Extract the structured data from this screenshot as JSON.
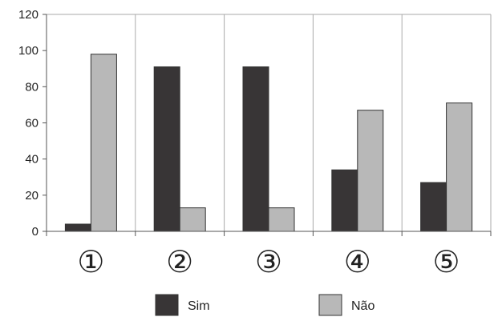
{
  "chart_data": {
    "type": "bar",
    "categories": [
      "①",
      "②",
      "③",
      "④",
      "⑤"
    ],
    "series": [
      {
        "name": "Sim",
        "values": [
          4,
          91,
          91,
          34,
          27
        ],
        "color": "#383536"
      },
      {
        "name": "Não",
        "values": [
          98,
          13,
          13,
          67,
          71
        ],
        "color": "#b8b8b8"
      }
    ],
    "yticks": [
      0,
      20,
      40,
      60,
      80,
      100,
      120
    ],
    "ylim": [
      0,
      120
    ],
    "grid": "vertical",
    "legend": "bottom-center",
    "title": "",
    "xlabel": "",
    "ylabel": ""
  }
}
